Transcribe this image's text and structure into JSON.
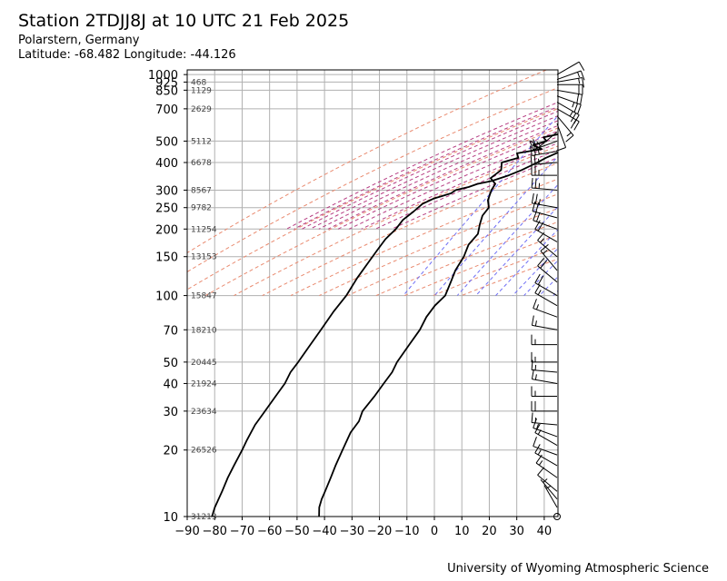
{
  "header": {
    "title": "Station 2TDJJ8J at 10 UTC 21 Feb 2025",
    "location": "Polarstern, Germany",
    "coords": "Latitude: -68.482 Longitude: -44.126"
  },
  "footer": {
    "credit": "University of Wyoming Atmospheric Science"
  },
  "chart_data": {
    "type": "line",
    "subtype": "skew-T log-p sounding",
    "title": "Station 2TDJJ8J at 10 UTC 21 Feb 2025",
    "xlabel": "",
    "ylabel": "",
    "xlim": [
      -90,
      45
    ],
    "ylim": [
      1000,
      10
    ],
    "y_scale": "log",
    "x_ticks": [
      -90,
      -80,
      -70,
      -60,
      -50,
      -40,
      -30,
      -20,
      -10,
      0,
      10,
      20,
      30,
      40
    ],
    "x_tick_labels": [
      "−90",
      "−80",
      "−70",
      "−60",
      "−50",
      "−40",
      "−30",
      "−20",
      "−10",
      "0",
      "10",
      "20",
      "30",
      "40"
    ],
    "y_ticks": [
      10,
      20,
      30,
      40,
      50,
      70,
      100,
      150,
      200,
      250,
      300,
      400,
      500,
      700,
      850,
      925,
      1000
    ],
    "height_labels": [
      {
        "p": 10,
        "label": "31213"
      },
      {
        "p": 20,
        "label": "26526"
      },
      {
        "p": 30,
        "label": "23634"
      },
      {
        "p": 40,
        "label": "21924"
      },
      {
        "p": 50,
        "label": "20445"
      },
      {
        "p": 70,
        "label": "18210"
      },
      {
        "p": 100,
        "label": "15847"
      },
      {
        "p": 150,
        "label": "13153"
      },
      {
        "p": 200,
        "label": "11254"
      },
      {
        "p": 250,
        "label": "9782"
      },
      {
        "p": 300,
        "label": "8567"
      },
      {
        "p": 400,
        "label": "6678"
      },
      {
        "p": 500,
        "label": "5112"
      },
      {
        "p": 700,
        "label": "2629"
      },
      {
        "p": 850,
        "label": "1129"
      },
      {
        "p": 925,
        "label": "468"
      }
    ],
    "grid": true,
    "series": [
      {
        "kind": "temperature",
        "color": "#000000",
        "points": [
          {
            "p": 1000,
            "t": -3.0
          },
          {
            "p": 980,
            "t": -6.0
          },
          {
            "p": 960,
            "t": -8.5
          },
          {
            "p": 925,
            "t": -10.8
          },
          {
            "p": 900,
            "t": -11.5
          },
          {
            "p": 880,
            "t": -11.0
          },
          {
            "p": 850,
            "t": -13.5
          },
          {
            "p": 800,
            "t": -16.0
          },
          {
            "p": 760,
            "t": -18.0
          },
          {
            "p": 720,
            "t": -19.5
          },
          {
            "p": 690,
            "t": -24.0
          },
          {
            "p": 670,
            "t": -21.5
          },
          {
            "p": 650,
            "t": -23.0
          },
          {
            "p": 620,
            "t": -24.5
          },
          {
            "p": 580,
            "t": -26.0
          },
          {
            "p": 550,
            "t": -28.0
          },
          {
            "p": 520,
            "t": -29.0
          },
          {
            "p": 500,
            "t": -30.5
          },
          {
            "p": 480,
            "t": -33.0
          },
          {
            "p": 450,
            "t": -36.5
          },
          {
            "p": 420,
            "t": -40.5
          },
          {
            "p": 400,
            "t": -42.5
          },
          {
            "p": 370,
            "t": -46.5
          },
          {
            "p": 350,
            "t": -50.0
          },
          {
            "p": 330,
            "t": -55.0
          },
          {
            "p": 320,
            "t": -59.5
          },
          {
            "p": 310,
            "t": -62.0
          },
          {
            "p": 300,
            "t": -66.0
          },
          {
            "p": 290,
            "t": -67.0
          },
          {
            "p": 275,
            "t": -72.0
          },
          {
            "p": 260,
            "t": -75.0
          },
          {
            "p": 240,
            "t": -76.5
          },
          {
            "p": 220,
            "t": -78.5
          },
          {
            "p": 200,
            "t": -79.0
          },
          {
            "p": 180,
            "t": -80.5
          },
          {
            "p": 160,
            "t": -81.0
          },
          {
            "p": 140,
            "t": -81.5
          },
          {
            "p": 120,
            "t": -82.0
          },
          {
            "p": 100,
            "t": -82.0
          },
          {
            "p": 85,
            "t": -83.0
          },
          {
            "p": 70,
            "t": -83.5
          },
          {
            "p": 60,
            "t": -84.0
          },
          {
            "p": 50,
            "t": -84.5
          },
          {
            "p": 45,
            "t": -85.0
          },
          {
            "p": 40,
            "t": -84.5
          },
          {
            "p": 35,
            "t": -85.0
          },
          {
            "p": 30,
            "t": -85.5
          },
          {
            "p": 26,
            "t": -86.0
          },
          {
            "p": 22,
            "t": -85.5
          },
          {
            "p": 20,
            "t": -85.0
          },
          {
            "p": 17,
            "t": -84.5
          },
          {
            "p": 15,
            "t": -84.0
          },
          {
            "p": 13,
            "t": -83.0
          },
          {
            "p": 11,
            "t": -82.0
          },
          {
            "p": 10,
            "t": -81.0
          }
        ]
      },
      {
        "kind": "dewpoint",
        "color": "#000000",
        "points": [
          {
            "p": 1000,
            "t": -3.5
          },
          {
            "p": 980,
            "t": -6.5
          },
          {
            "p": 960,
            "t": -9.0
          },
          {
            "p": 925,
            "t": -11.0
          },
          {
            "p": 900,
            "t": -12.5
          },
          {
            "p": 880,
            "t": -12.0
          },
          {
            "p": 850,
            "t": -14.5
          },
          {
            "p": 800,
            "t": -17.0
          },
          {
            "p": 760,
            "t": -22.0
          },
          {
            "p": 740,
            "t": -21.0
          },
          {
            "p": 720,
            "t": -26.0
          },
          {
            "p": 690,
            "t": -30.0
          },
          {
            "p": 670,
            "t": -27.0
          },
          {
            "p": 650,
            "t": -24.0
          },
          {
            "p": 620,
            "t": -30.0
          },
          {
            "p": 600,
            "t": -37.0
          },
          {
            "p": 580,
            "t": -35.0
          },
          {
            "p": 560,
            "t": -42.0
          },
          {
            "p": 540,
            "t": -40.5
          },
          {
            "p": 520,
            "t": -46.0
          },
          {
            "p": 500,
            "t": -44.0
          },
          {
            "p": 480,
            "t": -48.0
          },
          {
            "p": 460,
            "t": -44.0
          },
          {
            "p": 440,
            "t": -52.0
          },
          {
            "p": 420,
            "t": -50.5
          },
          {
            "p": 400,
            "t": -55.5
          },
          {
            "p": 370,
            "t": -54.0
          },
          {
            "p": 340,
            "t": -56.0
          },
          {
            "p": 320,
            "t": -53.0
          },
          {
            "p": 300,
            "t": -53.0
          },
          {
            "p": 270,
            "t": -52.0
          },
          {
            "p": 250,
            "t": -50.0
          },
          {
            "p": 230,
            "t": -50.5
          },
          {
            "p": 210,
            "t": -49.5
          },
          {
            "p": 190,
            "t": -48.0
          },
          {
            "p": 170,
            "t": -49.0
          },
          {
            "p": 150,
            "t": -48.0
          },
          {
            "p": 130,
            "t": -48.0
          },
          {
            "p": 115,
            "t": -47.0
          },
          {
            "p": 100,
            "t": -46.0
          },
          {
            "p": 90,
            "t": -47.5
          },
          {
            "p": 80,
            "t": -48.0
          },
          {
            "p": 70,
            "t": -47.5
          },
          {
            "p": 60,
            "t": -48.0
          },
          {
            "p": 50,
            "t": -48.5
          },
          {
            "p": 45,
            "t": -48.0
          },
          {
            "p": 40,
            "t": -48.5
          },
          {
            "p": 35,
            "t": -49.0
          },
          {
            "p": 30,
            "t": -50.0
          },
          {
            "p": 27,
            "t": -49.0
          },
          {
            "p": 24,
            "t": -49.5
          },
          {
            "p": 20,
            "t": -48.5
          },
          {
            "p": 17,
            "t": -47.5
          },
          {
            "p": 15,
            "t": -46.5
          },
          {
            "p": 13,
            "t": -45.5
          },
          {
            "p": 12,
            "t": -45.0
          },
          {
            "p": 11,
            "t": -44.0
          },
          {
            "p": 10,
            "t": -42.0
          }
        ]
      }
    ],
    "reference_lines": {
      "dry_adiabats_K": [
        210,
        230,
        250,
        270,
        290,
        310,
        330,
        350,
        370,
        390,
        410,
        430,
        450
      ],
      "dry_adiabat_color": "#e98a6f",
      "moist_adiabats_C": [
        -30,
        -26,
        -22,
        -18,
        -14,
        -10,
        -6,
        -2,
        2,
        6,
        10
      ],
      "moist_adiabat_color": "#b63c82",
      "mixing_ratios": [
        0.1,
        0.4,
        1,
        2,
        4,
        7,
        10,
        16,
        24,
        32,
        40
      ],
      "mixing_ratio_color": "#6f6ff5"
    },
    "wind_barbs": {
      "color": "#000000",
      "levels": [
        {
          "p": 1000,
          "dir": 60,
          "spd": 10
        },
        {
          "p": 950,
          "dir": 70,
          "spd": 15
        },
        {
          "p": 925,
          "dir": 80,
          "spd": 15
        },
        {
          "p": 900,
          "dir": 90,
          "spd": 20
        },
        {
          "p": 850,
          "dir": 100,
          "spd": 20
        },
        {
          "p": 800,
          "dir": 110,
          "spd": 25
        },
        {
          "p": 750,
          "dir": 120,
          "spd": 25
        },
        {
          "p": 700,
          "dir": 120,
          "spd": 20
        },
        {
          "p": 650,
          "dir": 140,
          "spd": 15
        },
        {
          "p": 600,
          "dir": 160,
          "spd": 10
        },
        {
          "p": 550,
          "dir": 230,
          "spd": 15
        },
        {
          "p": 500,
          "dir": 250,
          "spd": 20
        },
        {
          "p": 450,
          "dir": 260,
          "spd": 25
        },
        {
          "p": 400,
          "dir": 265,
          "spd": 25
        },
        {
          "p": 350,
          "dir": 270,
          "spd": 25
        },
        {
          "p": 300,
          "dir": 275,
          "spd": 25
        },
        {
          "p": 250,
          "dir": 280,
          "spd": 25
        },
        {
          "p": 225,
          "dir": 285,
          "spd": 20
        },
        {
          "p": 200,
          "dir": 290,
          "spd": 20
        },
        {
          "p": 175,
          "dir": 300,
          "spd": 20
        },
        {
          "p": 150,
          "dir": 310,
          "spd": 15
        },
        {
          "p": 130,
          "dir": 320,
          "spd": 15
        },
        {
          "p": 115,
          "dir": 310,
          "spd": 20
        },
        {
          "p": 100,
          "dir": 300,
          "spd": 20
        },
        {
          "p": 90,
          "dir": 300,
          "spd": 15
        },
        {
          "p": 80,
          "dir": 290,
          "spd": 15
        },
        {
          "p": 70,
          "dir": 280,
          "spd": 15
        },
        {
          "p": 60,
          "dir": 270,
          "spd": 15
        },
        {
          "p": 50,
          "dir": 270,
          "spd": 15
        },
        {
          "p": 45,
          "dir": 275,
          "spd": 15
        },
        {
          "p": 40,
          "dir": 280,
          "spd": 15
        },
        {
          "p": 35,
          "dir": 270,
          "spd": 15
        },
        {
          "p": 30,
          "dir": 270,
          "spd": 20
        },
        {
          "p": 26,
          "dir": 275,
          "spd": 15
        },
        {
          "p": 23,
          "dir": 290,
          "spd": 15
        },
        {
          "p": 21,
          "dir": 300,
          "spd": 15
        },
        {
          "p": 19,
          "dir": 290,
          "spd": 10
        },
        {
          "p": 17,
          "dir": 300,
          "spd": 15
        },
        {
          "p": 15,
          "dir": 305,
          "spd": 15
        },
        {
          "p": 13,
          "dir": 310,
          "spd": 10
        },
        {
          "p": 12,
          "dir": 320,
          "spd": 5
        },
        {
          "p": 11,
          "dir": 330,
          "spd": 5
        },
        {
          "p": 10,
          "dir": 0,
          "spd": 0
        }
      ]
    }
  }
}
